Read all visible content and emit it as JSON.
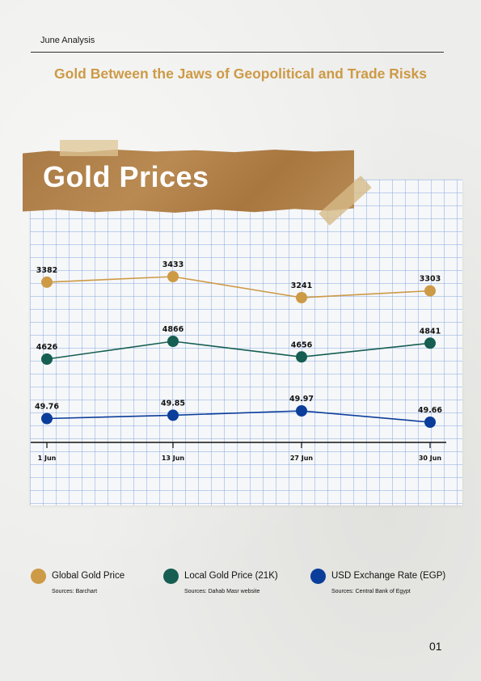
{
  "header": {
    "section_label": "June Analysis"
  },
  "headline": "Gold Between the Jaws of Geopolitical and Trade Risks",
  "banner_title": "Gold Prices",
  "chart_data": {
    "type": "line",
    "x": [
      "1 Jun",
      "13 Jun",
      "27 Jun",
      "30 Jun"
    ],
    "grid": true,
    "series": [
      {
        "name": "Global Gold Price",
        "values": [
          3382,
          3433,
          3241,
          3303
        ],
        "labels": [
          "3382",
          "3433",
          "3241",
          "3303"
        ],
        "color": "#cd9a46",
        "source": "Sources: Barchart"
      },
      {
        "name": "Local Gold Price (21K)",
        "values": [
          4626,
          4866,
          4656,
          4841
        ],
        "labels": [
          "4626",
          "4866",
          "4656",
          "4841"
        ],
        "color": "#155e51",
        "source": "Sources: Dahab Masr website"
      },
      {
        "name": "USD Exchange Rate (EGP)",
        "values": [
          49.76,
          49.85,
          49.97,
          49.66
        ],
        "labels": [
          "49.76",
          "49.85",
          "49.97",
          "49.66"
        ],
        "color": "#0b3d9a",
        "source": "Sources: Central Bank of Egypt"
      }
    ]
  },
  "page_number": "01"
}
